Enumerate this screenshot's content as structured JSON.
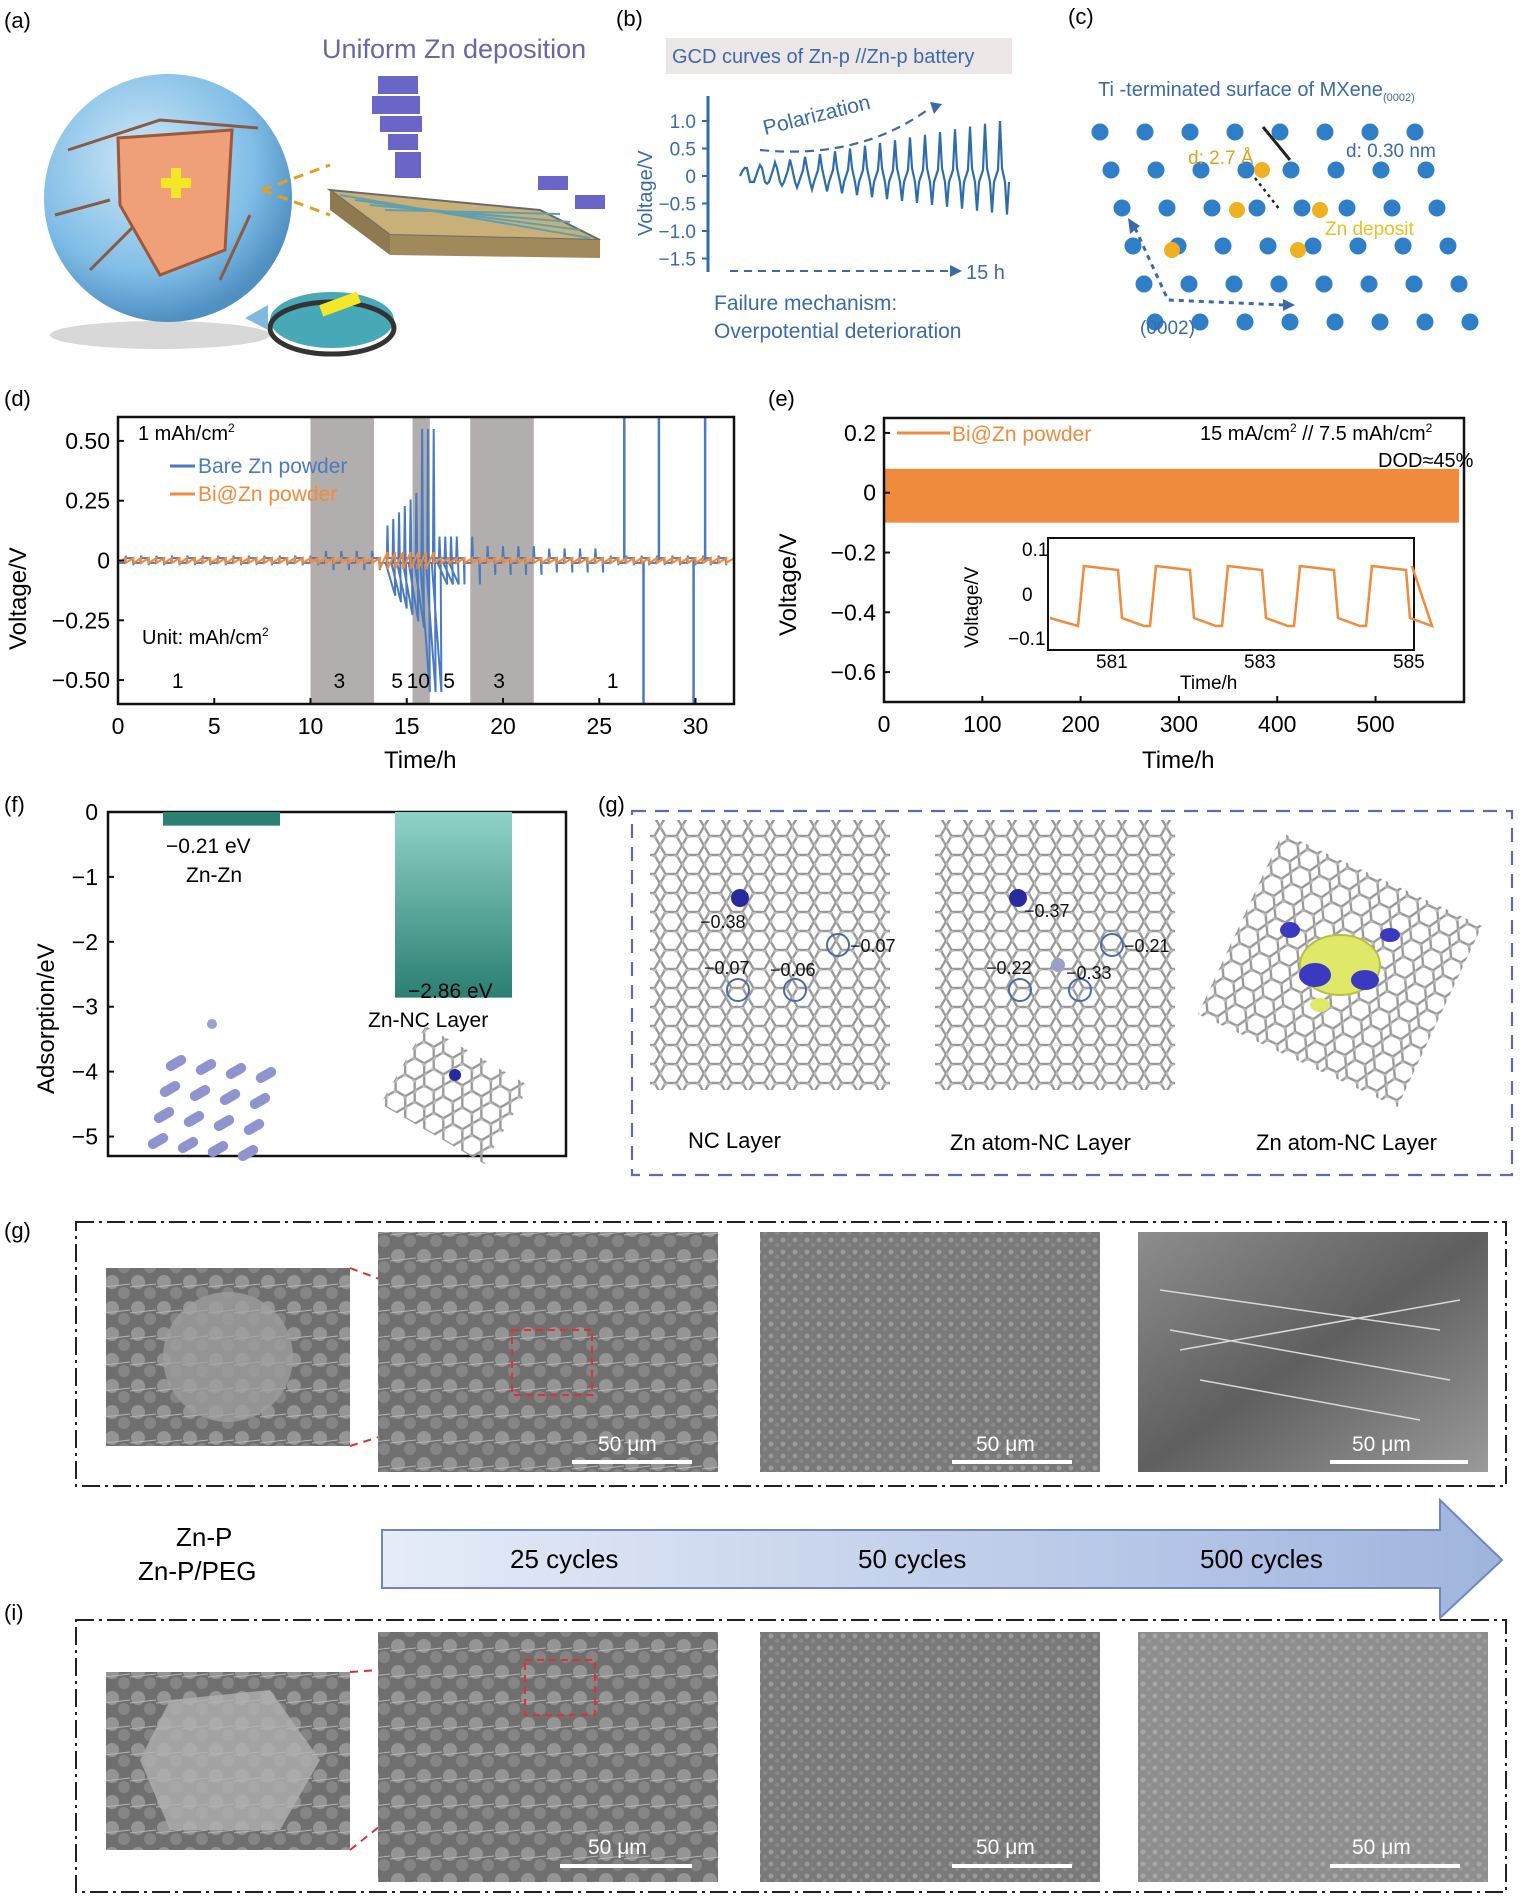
{
  "panels": {
    "a": {
      "letter": "(a)",
      "title": "Uniform Zn deposition"
    },
    "b": {
      "letter": "(b)",
      "title": "GCD curves of Zn-p //Zn-p battery",
      "annotation": "Polarization",
      "duration": "15 h",
      "ylabel": "Voltage/V",
      "yticks": [
        "1.0",
        "0.5",
        "0",
        "−0.5",
        "−1.0",
        "−1.5"
      ],
      "caption_line1": "Failure mechanism:",
      "caption_line2": "Overpotential deterioration"
    },
    "c": {
      "letter": "(c)",
      "title": "Ti -terminated surface of MXene",
      "title_sub": "(0002)",
      "d1": "d: 2.7 Å",
      "d2": "d: 0.30 nm",
      "zn_label": "Zn deposit",
      "plane": "(0002)"
    },
    "d": {
      "letter": "(d)",
      "note": "1 mAh/cm",
      "note_sup": "2",
      "unit_note": "Unit: mAh/cm",
      "unit_sup": "2",
      "region_labels": [
        "1",
        "3",
        "5",
        "10",
        "5",
        "3",
        "1"
      ]
    },
    "e": {
      "letter": "(e)",
      "cond": "15 mA/cm",
      "cond_sup": "2",
      "cond2": " // 7.5 mAh/cm",
      "cond2_sup": "2",
      "dod": "DOD≈45%",
      "inset": {
        "ylabel": "Voltage/V",
        "xlabel": "Time/h",
        "yticks": [
          "0.1",
          "0",
          "−0.1"
        ],
        "xticks": [
          "581",
          "583",
          "585"
        ]
      }
    },
    "f": {
      "letter": "(f)",
      "bar1_value": "−0.21 eV",
      "bar1_name": "Zn-Zn",
      "bar2_value": "−2.86 eV",
      "bar2_name": "Zn-NC Layer"
    },
    "g1": {
      "letter": "(g)",
      "labels": [
        "NC Layer",
        "Zn atom-NC Layer",
        "Zn atom-NC Layer"
      ],
      "values_a": [
        "−0.38",
        "−0.07",
        "−0.07",
        "−0.06"
      ],
      "values_b": [
        "−0.37",
        "−0.21",
        "−0.22",
        "−0.33"
      ]
    },
    "g2": {
      "letter": "(g)"
    },
    "i": {
      "letter": "(i)"
    },
    "sem": {
      "scale": "50 μm",
      "left_label1": "Zn-P",
      "left_label2": "Zn-P/PEG",
      "cycles": [
        "25 cycles",
        "50 cycles",
        "500 cycles"
      ]
    }
  },
  "chart_data": [
    {
      "type": "line",
      "panel": "d",
      "xlabel": "Time/h",
      "ylabel": "Voltage/V",
      "xlim": [
        0,
        32
      ],
      "ylim": [
        -0.6,
        0.6
      ],
      "xticks": [
        0,
        5,
        10,
        15,
        20,
        25,
        30
      ],
      "yticks": [
        0.5,
        0.25,
        0,
        -0.25,
        -0.5
      ],
      "ytick_labels": [
        "0.50",
        "0.25",
        "0",
        "−0.25",
        "−0.50"
      ],
      "shaded_regions": [
        [
          10,
          13.3
        ],
        [
          15.3,
          16.2
        ],
        [
          18.3,
          21.6
        ]
      ],
      "series": [
        {
          "name": "Bare Zn powder",
          "color": "#4a7abf"
        },
        {
          "name": "Bi@Zn powder",
          "color": "#f08a3c"
        }
      ]
    },
    {
      "type": "area",
      "panel": "e",
      "xlabel": "Time/h",
      "ylabel": "Voltage/V",
      "xlim": [
        0,
        590
      ],
      "ylim": [
        -0.7,
        0.25
      ],
      "xticks": [
        0,
        100,
        200,
        300,
        400,
        500
      ],
      "yticks": [
        0.2,
        0,
        -0.2,
        -0.4,
        -0.6
      ],
      "ytick_labels": [
        "0.2",
        "0",
        "−0.2",
        "−0.4",
        "−0.6"
      ],
      "series": [
        {
          "name": "Bi@Zn powder",
          "color": "#f08a3c",
          "band": [
            -0.1,
            0.08
          ]
        }
      ]
    },
    {
      "type": "bar",
      "panel": "f",
      "ylabel": "Adsorption/eV",
      "ylim": [
        -5.3,
        0
      ],
      "yticks": [
        0,
        -1,
        -2,
        -3,
        -4,
        -5
      ],
      "ytick_labels": [
        "0",
        "−1",
        "−2",
        "−3",
        "−4",
        "−5"
      ],
      "categories": [
        "Zn-Zn",
        "Zn-NC Layer"
      ],
      "values": [
        -0.21,
        -2.86
      ]
    }
  ]
}
